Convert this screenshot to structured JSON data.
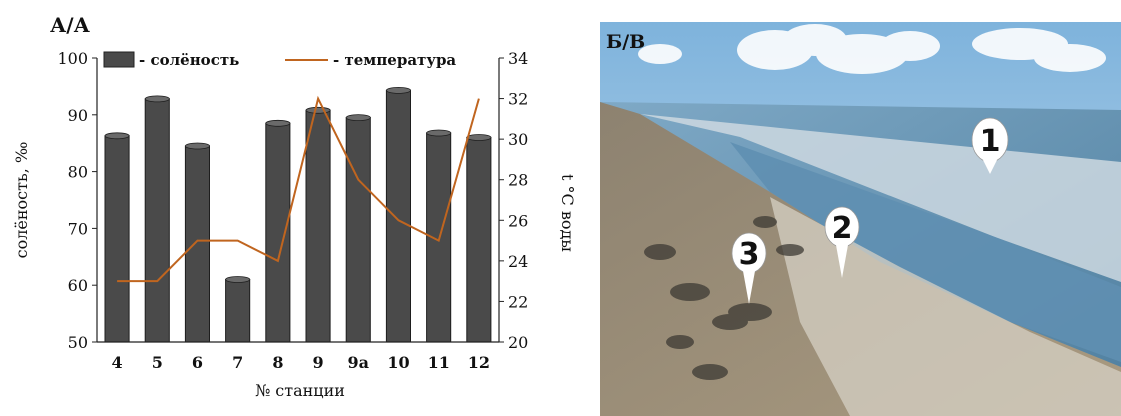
{
  "chart_panel_label": "А/А",
  "photo_panel_label": "Б/В",
  "photo_markers": [
    "1",
    "2",
    "3"
  ],
  "chart_data": {
    "type": "bar+line",
    "categories": [
      "4",
      "5",
      "6",
      "7",
      "8",
      "9",
      "9а",
      "10",
      "11",
      "12"
    ],
    "series": [
      {
        "name": "- солёность",
        "type": "bar",
        "axis": "left",
        "color": "#4a4a4a",
        "values": [
          86.3,
          92.8,
          84.5,
          61.0,
          88.5,
          90.8,
          89.5,
          94.3,
          86.8,
          86.0
        ]
      },
      {
        "name": "- температура",
        "type": "line",
        "axis": "right",
        "color": "#c0651f",
        "values": [
          23,
          23,
          25,
          25,
          24,
          32,
          28,
          26,
          25,
          32
        ]
      }
    ],
    "xlabel": "№ станции",
    "ylabel_left": "солёность, ‰",
    "ylabel_right": "t °C воды",
    "ylim_left": [
      50,
      100
    ],
    "yticks_left": [
      "50",
      "60",
      "70",
      "80",
      "90",
      "100"
    ],
    "ylim_right": [
      20,
      34
    ],
    "yticks_right": [
      "20",
      "22",
      "24",
      "26",
      "28",
      "30",
      "32",
      "34"
    ],
    "grid": false,
    "legend_position": "top"
  }
}
